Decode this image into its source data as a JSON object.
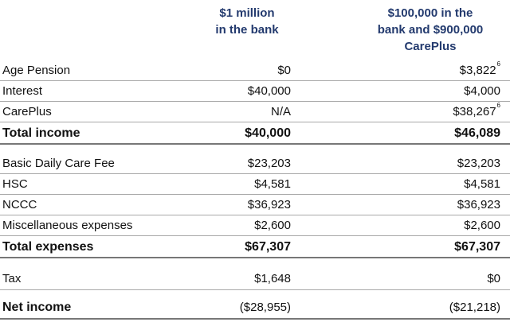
{
  "headers": {
    "col1": [
      "$1 million",
      "in the bank"
    ],
    "col2": [
      "$100,000 in the",
      "bank and $900,000",
      "CarePlus"
    ]
  },
  "rows": [
    {
      "label": "Age Pension",
      "v1": "$0",
      "v2": "$3,822",
      "v2_note": "6"
    },
    {
      "label": "Interest",
      "v1": "$40,000",
      "v2": "$4,000",
      "v2_note": ""
    },
    {
      "label": "CarePlus",
      "v1": "N/A",
      "v2": "$38,267",
      "v2_note": "6"
    },
    {
      "label": "Total income",
      "v1": "$40,000",
      "v2": "$46,089",
      "v2_note": ""
    },
    {
      "label": "Basic Daily Care Fee",
      "v1": "$23,203",
      "v2": "$23,203",
      "v2_note": ""
    },
    {
      "label": "HSC",
      "v1": "$4,581",
      "v2": "$4,581",
      "v2_note": ""
    },
    {
      "label": "NCCC",
      "v1": "$36,923",
      "v2": "$36,923",
      "v2_note": ""
    },
    {
      "label": "Miscellaneous expenses",
      "v1": "$2,600",
      "v2": "$2,600",
      "v2_note": ""
    },
    {
      "label": "Total expenses",
      "v1": "$67,307",
      "v2": "$67,307",
      "v2_note": ""
    },
    {
      "label": "Tax",
      "v1": "$1,648",
      "v2": "$0",
      "v2_note": ""
    },
    {
      "label": "Net income",
      "v1": "($28,955)",
      "v2": "($21,218)",
      "v2_note": ""
    }
  ]
}
